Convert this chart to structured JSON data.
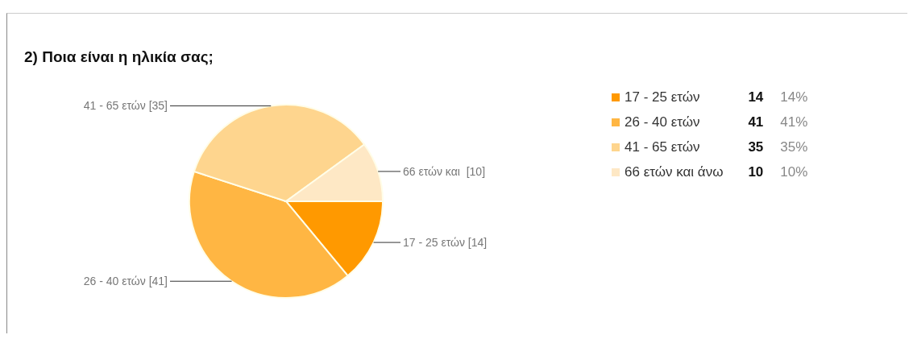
{
  "chart_data": {
    "type": "pie",
    "title": "2) Ποια είναι η ηλικία σας;",
    "categories": [
      "17 - 25 ετών",
      "26 - 40 ετών",
      "41 - 65 ετών",
      "66 ετών και άνω"
    ],
    "values": [
      14,
      41,
      35,
      10
    ],
    "colors": [
      "#ff9900",
      "#ffb643",
      "#fed58e",
      "#fee8c5"
    ],
    "value_labels": [
      "17 - 25 ετών [14]",
      "26 - 40 ετών [41]",
      "41 - 65 ετών [35]",
      "66 ετών και  [10]"
    ],
    "annotations": [
      "14",
      "14%",
      "41",
      "41%",
      "35",
      "35%",
      "10",
      "10%"
    ],
    "legend": "right"
  }
}
